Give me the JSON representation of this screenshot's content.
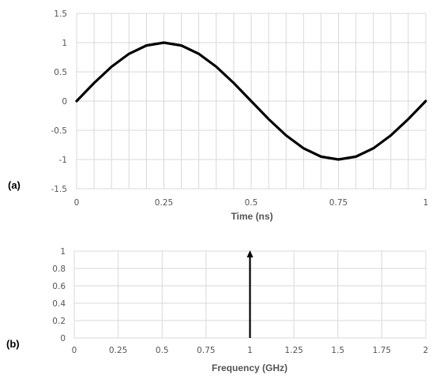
{
  "chart_data": [
    {
      "type": "line",
      "panel_label": "(a)",
      "xlabel": "Time (ns)",
      "ylabel": "",
      "xlim": [
        0,
        1
      ],
      "ylim": [
        -1.5,
        1.5
      ],
      "x_ticks": [
        0,
        0.25,
        0.5,
        0.75,
        1
      ],
      "x_tick_labels": [
        "0",
        "0.25",
        "0.5",
        "0.75",
        "1"
      ],
      "y_ticks": [
        -1.5,
        -1,
        -0.5,
        0,
        0.5,
        1,
        1.5
      ],
      "y_tick_labels": [
        "-1.5",
        "-1",
        "-0.5",
        "0",
        "0.5",
        "1",
        "1.5"
      ],
      "grid": true,
      "vertical_grid_step": 0.05,
      "series": [
        {
          "x": [
            0,
            0.05,
            0.1,
            0.15,
            0.2,
            0.25,
            0.3,
            0.35,
            0.4,
            0.45,
            0.5,
            0.55,
            0.6,
            0.65,
            0.7,
            0.75,
            0.8,
            0.85,
            0.9,
            0.95,
            1
          ],
          "y": [
            0,
            0.309,
            0.588,
            0.809,
            0.951,
            1,
            0.951,
            0.809,
            0.588,
            0.309,
            0,
            -0.309,
            -0.588,
            -0.809,
            -0.951,
            -1,
            -0.951,
            -0.809,
            -0.588,
            -0.309,
            0
          ],
          "color": "#000000"
        }
      ]
    },
    {
      "type": "bar",
      "style": "impulse-arrow",
      "panel_label": "(b)",
      "xlabel": "Frequency (GHz)",
      "ylabel": "",
      "xlim": [
        0,
        2
      ],
      "ylim": [
        0,
        1
      ],
      "x_ticks": [
        0,
        0.25,
        0.5,
        0.75,
        1,
        1.25,
        1.5,
        1.75,
        2
      ],
      "x_tick_labels": [
        "0",
        "0.25",
        "0.5",
        "0.75",
        "1",
        "1.25",
        "1.5",
        "1.75",
        "2"
      ],
      "y_ticks": [
        0,
        0.2,
        0.4,
        0.6,
        0.8,
        1
      ],
      "y_tick_labels": [
        "0",
        "0.2",
        "0.4",
        "0.6",
        "0.8",
        "1"
      ],
      "grid": true,
      "series": [
        {
          "x": [
            1
          ],
          "values": [
            1
          ],
          "color": "#000000"
        }
      ]
    }
  ]
}
